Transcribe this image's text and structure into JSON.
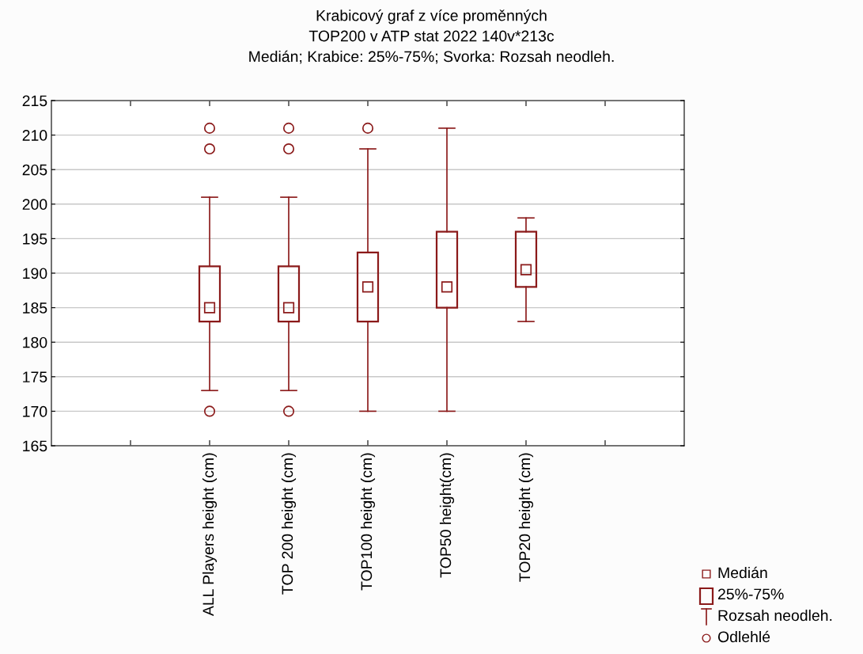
{
  "chart_data": {
    "type": "box",
    "title": "Krabicový graf z více proměnných\nTOP200 v ATP stat 2022 140v*213c\nMedián; Krabice: 25%-75%; Svorka: Rozsah neodleh.",
    "categories": [
      null,
      "ALL Players height (cm)",
      "TOP 200 height (cm)",
      "TOP100 height (cm)",
      "TOP50 height(cm)",
      "TOP20 height (cm)",
      null
    ],
    "color": "#8b1a1a",
    "boxes": [
      null,
      {
        "low": 173,
        "q1": 183,
        "median": 185,
        "q3": 191,
        "high": 201,
        "outliers": [
          170,
          208,
          211
        ]
      },
      {
        "low": 173,
        "q1": 183,
        "median": 185,
        "q3": 191,
        "high": 201,
        "outliers": [
          170,
          208,
          211
        ]
      },
      {
        "low": 170,
        "q1": 183,
        "median": 188,
        "q3": 193,
        "high": 208,
        "outliers": [
          211
        ]
      },
      {
        "low": 170,
        "q1": 185,
        "median": 188,
        "q3": 196,
        "high": 211
      },
      {
        "low": 183,
        "q1": 188,
        "median": 190.5,
        "q3": 196,
        "high": 198
      },
      null
    ],
    "ylim": [
      165,
      215
    ],
    "yticks": [
      165,
      170,
      175,
      180,
      185,
      190,
      195,
      200,
      205,
      210,
      215
    ],
    "grid": "y",
    "marker": "square",
    "annotations": [
      "Medián",
      "25%-75%",
      "Rozsah neodleh.",
      "Odlehlé"
    ]
  }
}
